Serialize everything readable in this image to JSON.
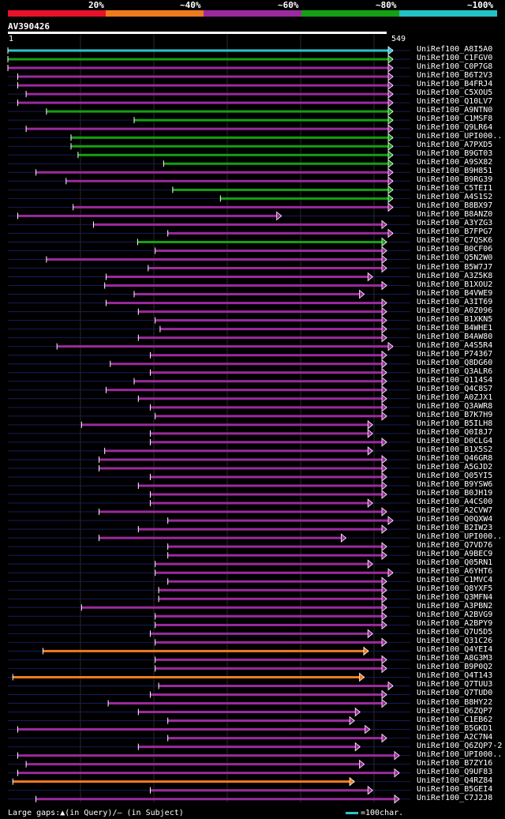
{
  "legend": {
    "labels": [
      "20%",
      "~40%",
      "~60%",
      "~80%",
      "~100%"
    ],
    "colors": [
      "#e8112b",
      "#f07b1e",
      "#9b2a9e",
      "#14a014",
      "#23c1c6"
    ]
  },
  "query": {
    "id": "AV390426",
    "start": "1",
    "end": "549",
    "length": 549
  },
  "footer": {
    "gaps_text": "Large gaps:▲(in Query)/– (in Subject)",
    "scale_text": "=100char."
  },
  "hits": [
    {
      "name": "UniRef100_A8I5A0",
      "color": "#2cc4c9",
      "start": 0,
      "end": 549,
      "arrow": 549
    },
    {
      "name": "UniRef100_C1FGV0",
      "color": "#14a014",
      "start": 0,
      "end": 549,
      "arrow": 549
    },
    {
      "name": "UniRef100_C0P7G8",
      "color": "#9b2a9e",
      "start": 0,
      "end": 549,
      "arrow": 549
    },
    {
      "name": "UniRef100_B6T2V3",
      "color": "#9b2a9e",
      "start": 14,
      "end": 549,
      "arrow": 549
    },
    {
      "name": "UniRef100_B4FRJ4",
      "color": "#9b2a9e",
      "start": 14,
      "end": 549,
      "arrow": 549
    },
    {
      "name": "UniRef100_C5XOU5",
      "color": "#9b2a9e",
      "start": 26,
      "end": 549,
      "arrow": 549
    },
    {
      "name": "UniRef100_Q10LV7",
      "color": "#9b2a9e",
      "start": 14,
      "end": 549,
      "arrow": 549
    },
    {
      "name": "UniRef100_A9NTN0",
      "color": "#14a014",
      "start": 55,
      "end": 549,
      "arrow": 549
    },
    {
      "name": "UniRef100_C1MSF8",
      "color": "#14a014",
      "start": 180,
      "end": 549,
      "arrow": 549
    },
    {
      "name": "UniRef100_Q9LR64",
      "color": "#9b2a9e",
      "start": 26,
      "end": 549,
      "arrow": 549
    },
    {
      "name": "UniRef100_UPI000..",
      "color": "#14a014",
      "start": 90,
      "end": 549,
      "arrow": 549
    },
    {
      "name": "UniRef100_A7PXD5",
      "color": "#14a014",
      "start": 90,
      "end": 549,
      "arrow": 549
    },
    {
      "name": "UniRef100_B9GT03",
      "color": "#14a014",
      "start": 100,
      "end": 549,
      "arrow": 549
    },
    {
      "name": "UniRef100_A9SX82",
      "color": "#14a014",
      "start": 222,
      "end": 549,
      "arrow": 549
    },
    {
      "name": "UniRef100_B9H851",
      "color": "#9b2a9e",
      "start": 40,
      "end": 549,
      "arrow": 549
    },
    {
      "name": "UniRef100_B9RG39",
      "color": "#9b2a9e",
      "start": 83,
      "end": 549,
      "arrow": 549
    },
    {
      "name": "UniRef100_C5TEI1",
      "color": "#14a014",
      "start": 235,
      "end": 549,
      "arrow": 549
    },
    {
      "name": "UniRef100_A4S1S2",
      "color": "#14a014",
      "start": 303,
      "end": 549,
      "arrow": 549
    },
    {
      "name": "UniRef100_B8BX97",
      "color": "#9b2a9e",
      "start": 93,
      "end": 549,
      "arrow": 549
    },
    {
      "name": "UniRef100_B8ANZ0",
      "color": "#9b2a9e",
      "start": 14,
      "end": 390,
      "arrow": 390
    },
    {
      "name": "UniRef100_A3YZG3",
      "color": "#9b2a9e",
      "start": 122,
      "end": 540,
      "arrow": 540
    },
    {
      "name": "UniRef100_B7FPG7",
      "color": "#9b2a9e",
      "start": 228,
      "end": 549,
      "arrow": 549
    },
    {
      "name": "UniRef100_C7QSK6",
      "color": "#14a014",
      "start": 185,
      "end": 540,
      "arrow": 540
    },
    {
      "name": "UniRef100_B0CF06",
      "color": "#9b2a9e",
      "start": 210,
      "end": 540,
      "arrow": 540
    },
    {
      "name": "UniRef100_Q5N2W0",
      "color": "#9b2a9e",
      "start": 55,
      "end": 540,
      "arrow": 540
    },
    {
      "name": "UniRef100_B5W7J7",
      "color": "#9b2a9e",
      "start": 200,
      "end": 540,
      "arrow": 540
    },
    {
      "name": "UniRef100_A3Z5K8",
      "color": "#9b2a9e",
      "start": 140,
      "end": 520,
      "arrow": 520
    },
    {
      "name": "UniRef100_B1XOU2",
      "color": "#9b2a9e",
      "start": 138,
      "end": 540,
      "arrow": 540
    },
    {
      "name": "UniRef100_B4VWE9",
      "color": "#9b2a9e",
      "start": 180,
      "end": 508,
      "arrow": 508
    },
    {
      "name": "UniRef100_A3IT69",
      "color": "#9b2a9e",
      "start": 140,
      "end": 540,
      "arrow": 540
    },
    {
      "name": "UniRef100_A0Z096",
      "color": "#9b2a9e",
      "start": 186,
      "end": 540,
      "arrow": 540
    },
    {
      "name": "UniRef100_B1XKN5",
      "color": "#9b2a9e",
      "start": 210,
      "end": 540,
      "arrow": 540
    },
    {
      "name": "UniRef100_B4WHE1",
      "color": "#9b2a9e",
      "start": 217,
      "end": 540,
      "arrow": 540
    },
    {
      "name": "UniRef100_B4AW80",
      "color": "#9b2a9e",
      "start": 186,
      "end": 540,
      "arrow": 540
    },
    {
      "name": "UniRef100_A4S5R4",
      "color": "#9b2a9e",
      "start": 70,
      "end": 549,
      "arrow": 549
    },
    {
      "name": "UniRef100_P74367",
      "color": "#9b2a9e",
      "start": 203,
      "end": 540,
      "arrow": 540
    },
    {
      "name": "UniRef100_Q8DG60",
      "color": "#9b2a9e",
      "start": 146,
      "end": 540,
      "arrow": 540
    },
    {
      "name": "UniRef100_Q3ALR6",
      "color": "#9b2a9e",
      "start": 203,
      "end": 540,
      "arrow": 540
    },
    {
      "name": "UniRef100_Q114S4",
      "color": "#9b2a9e",
      "start": 180,
      "end": 540,
      "arrow": 540
    },
    {
      "name": "UniRef100_Q4C8S7",
      "color": "#9b2a9e",
      "start": 140,
      "end": 540,
      "arrow": 540
    },
    {
      "name": "UniRef100_A0ZJX1",
      "color": "#9b2a9e",
      "start": 186,
      "end": 540,
      "arrow": 540
    },
    {
      "name": "UniRef100_Q3AWR8",
      "color": "#9b2a9e",
      "start": 203,
      "end": 540,
      "arrow": 540
    },
    {
      "name": "UniRef100_B7K7H9",
      "color": "#9b2a9e",
      "start": 210,
      "end": 540,
      "arrow": 540
    },
    {
      "name": "UniRef100_B5ILH8",
      "color": "#9b2a9e",
      "start": 105,
      "end": 520,
      "arrow": 520
    },
    {
      "name": "UniRef100_Q0I8J7",
      "color": "#9b2a9e",
      "start": 203,
      "end": 520,
      "arrow": 520
    },
    {
      "name": "UniRef100_D0CLG4",
      "color": "#9b2a9e",
      "start": 203,
      "end": 540,
      "arrow": 540
    },
    {
      "name": "UniRef100_B1X5S2",
      "color": "#9b2a9e",
      "start": 138,
      "end": 520,
      "arrow": 520
    },
    {
      "name": "UniRef100_Q46GR8",
      "color": "#9b2a9e",
      "start": 130,
      "end": 540,
      "arrow": 540
    },
    {
      "name": "UniRef100_A5GJD2",
      "color": "#9b2a9e",
      "start": 130,
      "end": 540,
      "arrow": 540
    },
    {
      "name": "UniRef100_Q05YI5",
      "color": "#9b2a9e",
      "start": 203,
      "end": 540,
      "arrow": 540
    },
    {
      "name": "UniRef100_B9YSW6",
      "color": "#9b2a9e",
      "start": 186,
      "end": 540,
      "arrow": 540
    },
    {
      "name": "UniRef100_B0JH19",
      "color": "#9b2a9e",
      "start": 203,
      "end": 540,
      "arrow": 540
    },
    {
      "name": "UniRef100_A4CS00",
      "color": "#9b2a9e",
      "start": 203,
      "end": 520,
      "arrow": 520
    },
    {
      "name": "UniRef100_A2CVW7",
      "color": "#9b2a9e",
      "start": 130,
      "end": 540,
      "arrow": 540
    },
    {
      "name": "UniRef100_Q0QXW4",
      "color": "#9b2a9e",
      "start": 228,
      "end": 549,
      "arrow": 549
    },
    {
      "name": "UniRef100_B2IW23",
      "color": "#9b2a9e",
      "start": 186,
      "end": 540,
      "arrow": 540
    },
    {
      "name": "UniRef100_UPI000..",
      "color": "#9b2a9e",
      "start": 130,
      "end": 482,
      "arrow": 482
    },
    {
      "name": "UniRef100_Q7VD76",
      "color": "#9b2a9e",
      "start": 228,
      "end": 540,
      "arrow": 540
    },
    {
      "name": "UniRef100_A9BEC9",
      "color": "#9b2a9e",
      "start": 228,
      "end": 540,
      "arrow": 540
    },
    {
      "name": "UniRef100_Q05RN1",
      "color": "#9b2a9e",
      "start": 210,
      "end": 520,
      "arrow": 520
    },
    {
      "name": "UniRef100_A6YHT6",
      "color": "#9b2a9e",
      "start": 210,
      "end": 549,
      "arrow": 549
    },
    {
      "name": "UniRef100_C1MVC4",
      "color": "#9b2a9e",
      "start": 228,
      "end": 540,
      "arrow": 540
    },
    {
      "name": "UniRef100_Q8YXF5",
      "color": "#9b2a9e",
      "start": 215,
      "end": 540,
      "arrow": 540
    },
    {
      "name": "UniRef100_Q3MFN4",
      "color": "#9b2a9e",
      "start": 215,
      "end": 540,
      "arrow": 540
    },
    {
      "name": "UniRef100_A3PBN2",
      "color": "#9b2a9e",
      "start": 105,
      "end": 540,
      "arrow": 540
    },
    {
      "name": "UniRef100_A2BVG9",
      "color": "#9b2a9e",
      "start": 210,
      "end": 540,
      "arrow": 540
    },
    {
      "name": "UniRef100_A2BPY9",
      "color": "#9b2a9e",
      "start": 210,
      "end": 540,
      "arrow": 540
    },
    {
      "name": "UniRef100_Q7U5D5",
      "color": "#9b2a9e",
      "start": 203,
      "end": 520,
      "arrow": 520
    },
    {
      "name": "UniRef100_Q31C26",
      "color": "#9b2a9e",
      "start": 210,
      "end": 540,
      "arrow": 540
    },
    {
      "name": "UniRef100_Q4YEI4",
      "color": "#f07b1e",
      "start": 50,
      "end": 514,
      "arrow": 514
    },
    {
      "name": "UniRef100_A8G3M3",
      "color": "#9b2a9e",
      "start": 210,
      "end": 540,
      "arrow": 540
    },
    {
      "name": "UniRef100_B9P0Q2",
      "color": "#9b2a9e",
      "start": 210,
      "end": 540,
      "arrow": 540
    },
    {
      "name": "UniRef100_Q4T143",
      "color": "#f07b1e",
      "start": 7,
      "end": 508,
      "arrow": 508
    },
    {
      "name": "UniRef100_Q7TUU3",
      "color": "#9b2a9e",
      "start": 215,
      "end": 549,
      "arrow": 549
    },
    {
      "name": "UniRef100_Q7TUD0",
      "color": "#9b2a9e",
      "start": 203,
      "end": 540,
      "arrow": 540
    },
    {
      "name": "UniRef100_B8HY22",
      "color": "#9b2a9e",
      "start": 143,
      "end": 540,
      "arrow": 540
    },
    {
      "name": "UniRef100_Q6ZQP7",
      "color": "#9b2a9e",
      "start": 186,
      "end": 502,
      "arrow": 502
    },
    {
      "name": "UniRef100_C1EB62",
      "color": "#9b2a9e",
      "start": 228,
      "end": 494,
      "arrow": 494
    },
    {
      "name": "UniRef100_B5GKD1",
      "color": "#9b2a9e",
      "start": 14,
      "end": 516,
      "arrow": 516
    },
    {
      "name": "UniRef100_A2C7N4",
      "color": "#9b2a9e",
      "start": 228,
      "end": 540,
      "arrow": 540
    },
    {
      "name": "UniRef100_Q6ZQP7-2",
      "color": "#9b2a9e",
      "start": 186,
      "end": 502,
      "arrow": 502
    },
    {
      "name": "UniRef100_UPI000..",
      "color": "#9b2a9e",
      "start": 14,
      "end": 558,
      "arrow": 558
    },
    {
      "name": "UniRef100_B7ZY16",
      "color": "#9b2a9e",
      "start": 26,
      "end": 508,
      "arrow": 508
    },
    {
      "name": "UniRef100_Q9UF83",
      "color": "#9b2a9e",
      "start": 14,
      "end": 558,
      "arrow": 558
    },
    {
      "name": "UniRef100_Q4RZ84",
      "color": "#f07b1e",
      "start": 7,
      "end": 494,
      "arrow": 494
    },
    {
      "name": "UniRef100_B5GEI4",
      "color": "#9b2a9e",
      "start": 203,
      "end": 520,
      "arrow": 520
    },
    {
      "name": "UniRef100_C7J2J8",
      "color": "#9b2a9e",
      "start": 40,
      "end": 558,
      "arrow": 558
    }
  ]
}
